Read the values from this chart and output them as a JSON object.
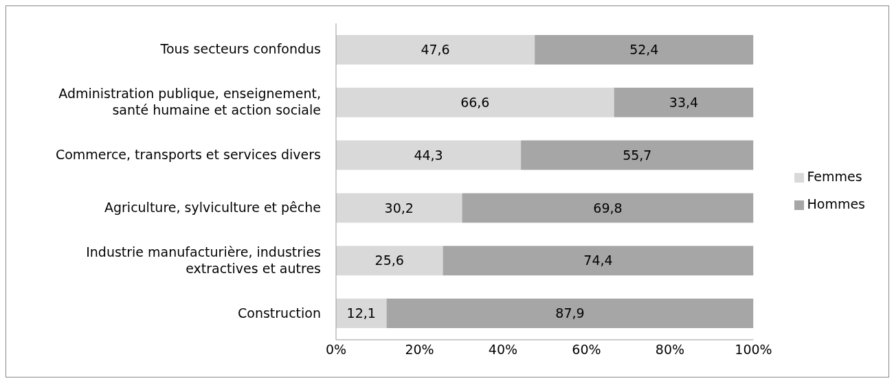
{
  "chart_data": {
    "type": "bar",
    "orientation": "horizontal",
    "stacked": true,
    "categories": [
      "Tous secteurs confondus",
      "Administration publique, enseignement, santé humaine et action sociale",
      "Commerce, transports et services divers",
      "Agriculture, sylviculture et pêche",
      "Industrie manufacturière, industries extractives et autres",
      "Construction"
    ],
    "series": [
      {
        "name": "Femmes",
        "color": "#d9d9d9",
        "values": [
          47.6,
          66.6,
          44.3,
          30.2,
          25.6,
          12.1
        ],
        "value_labels": [
          "47,6",
          "66,6",
          "44,3",
          "30,2",
          "25,6",
          "12,1"
        ]
      },
      {
        "name": "Hommes",
        "color": "#a6a6a6",
        "values": [
          52.4,
          33.4,
          55.7,
          69.8,
          74.4,
          87.9
        ],
        "value_labels": [
          "52,4",
          "33,4",
          "55,7",
          "69,8",
          "74,4",
          "87,9"
        ]
      }
    ],
    "xlim": [
      0,
      100
    ],
    "xticks": [
      {
        "value": 0,
        "label": "0%"
      },
      {
        "value": 20,
        "label": "20%"
      },
      {
        "value": 40,
        "label": "40%"
      },
      {
        "value": 60,
        "label": "60%"
      },
      {
        "value": 80,
        "label": "80%"
      },
      {
        "value": 100,
        "label": "100%"
      }
    ],
    "grid": false,
    "legend": "right"
  }
}
